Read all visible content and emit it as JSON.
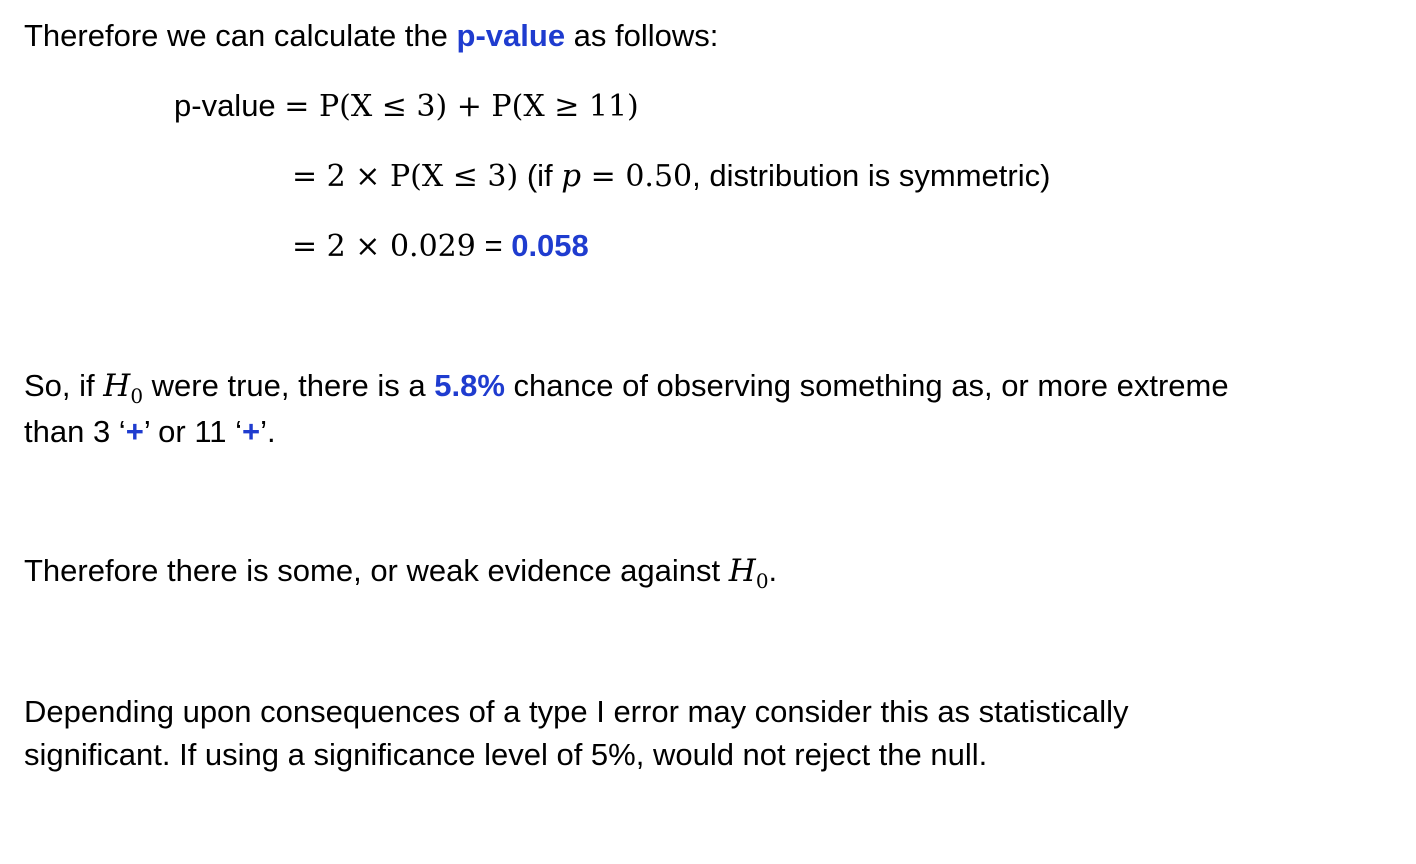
{
  "intro": {
    "before": "Therefore we can calculate the ",
    "highlight": "p-value",
    "after": " as follows:"
  },
  "equation": {
    "line1_label": "p-value ",
    "line1_expr": "= P(X ≤ 3) + P(X ≥ 11)",
    "line2_expr": "= 2 × P(X ≤ 3)",
    "line2_note_open": " (if ",
    "line2_note_var": "p",
    "line2_note_value": " = 0.50",
    "line2_note_close": ", distribution is symmetric)",
    "line3_expr": "= 2 × 0.029",
    "line3_eq": " = ",
    "line3_result": "0.058"
  },
  "interpretation": {
    "line1_before": "So, if ",
    "h_symbol": "H",
    "h_sub": "0",
    "line1_mid": " were true, there is a ",
    "percent": "5.8%",
    "line1_after": " chance of observing something as, or more extreme",
    "line2_before": "than 3 ‘",
    "plus1": "+",
    "line2_mid": "’ or 11 ‘",
    "plus2": "+",
    "line2_after": "’."
  },
  "evidence": {
    "before": "Therefore there is some, or weak evidence against ",
    "h_symbol": "H",
    "h_sub": "0",
    "after": "."
  },
  "conclusion": {
    "line1": "Depending upon consequences of a type I error may consider this as statistically",
    "line2": "significant. If using a significance level of 5%, would not reject the null."
  },
  "colors": {
    "highlight": "#1f3ccf"
  }
}
